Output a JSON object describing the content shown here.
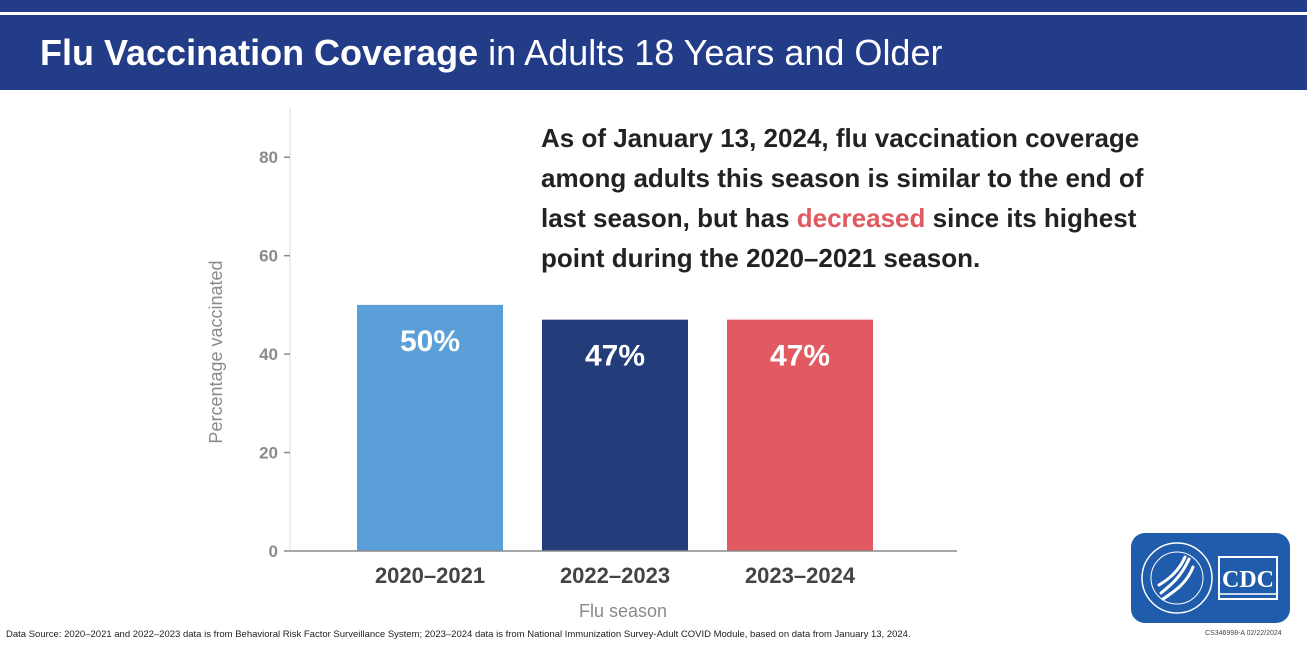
{
  "header": {
    "title_bold": "Flu Vaccination Coverage",
    "title_rest": " in Adults 18 Years and Older"
  },
  "callout": {
    "text_before": "As of January 13, 2024, flu vaccination coverage among adults this season is similar to the end of last season, but has ",
    "highlight": "decreased",
    "text_after": " since its highest point during the 2020–2021 season."
  },
  "chart_data": {
    "type": "bar",
    "categories": [
      "2020–2021",
      "2022–2023",
      "2023–2024"
    ],
    "values": [
      50,
      47,
      47
    ],
    "value_labels": [
      "50%",
      "47%",
      "47%"
    ],
    "colors": [
      "#5b9fd8",
      "#233c7a",
      "#e15a61"
    ],
    "xlabel": "Flu season",
    "ylabel": "Percentage vaccinated",
    "ylim": [
      0,
      90
    ],
    "yticks": [
      0,
      20,
      40,
      60,
      80
    ],
    "grid": false
  },
  "footer": {
    "source": "Data Source: 2020–2021 and 2022–2023 data is from Behavioral Risk Factor Surveillance System; 2023–2024 data is from National Immunization Survey-Adult COVID Module, based on data from January 13, 2024.",
    "code": "CS346998-A 02/22/2024",
    "logo_text": "CDC",
    "seal_text": "DEPARTMENT OF HEALTH & HUMAN SERVICES USA"
  },
  "colors": {
    "header_band": "#233c87",
    "accent_red": "#e15a61"
  }
}
